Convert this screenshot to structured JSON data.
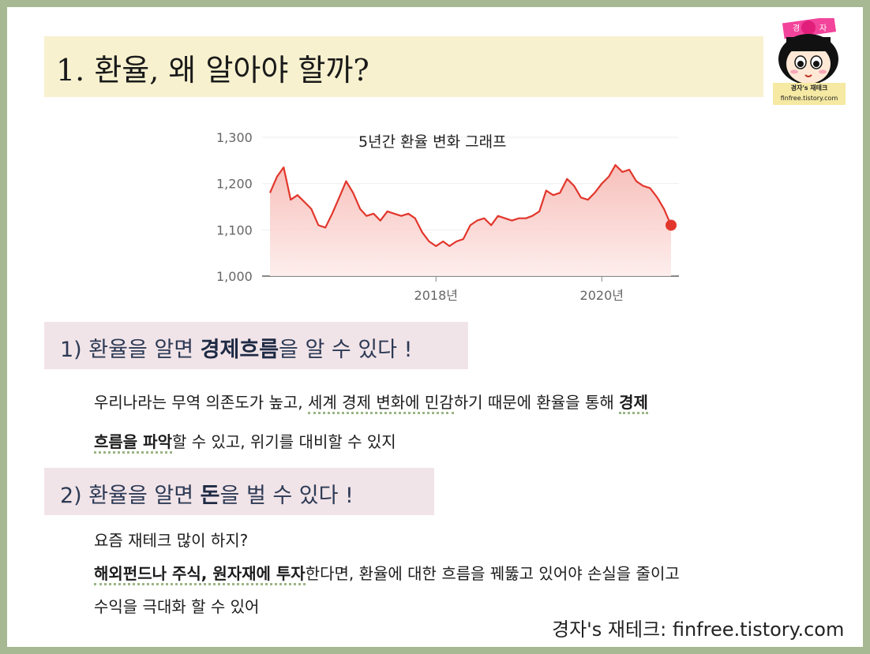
{
  "title": "1. 환율, 왜 알아야 할까?",
  "logo": {
    "badge_left": "경",
    "badge_right": "자",
    "caption_line1": "경자's 재테크",
    "caption_line2": "finfree.tistory.com"
  },
  "chart_data": {
    "type": "line",
    "title": "5년간 환율 변화 그래프",
    "xlabel": "",
    "ylabel": "",
    "ylim": [
      1000,
      1300
    ],
    "yticks": [
      "1,300",
      "1,200",
      "1,100",
      "1,000"
    ],
    "xticks": [
      "2018년",
      "2020년"
    ],
    "series": [
      {
        "x": [
          "2016-01",
          "2016-02",
          "2016-03",
          "2016-04",
          "2016-05",
          "2016-06",
          "2016-07",
          "2016-08",
          "2016-09",
          "2016-10",
          "2016-11",
          "2016-12",
          "2017-01",
          "2017-02",
          "2017-03",
          "2017-04",
          "2017-05",
          "2017-06",
          "2017-07",
          "2017-08",
          "2017-09",
          "2017-10",
          "2017-11",
          "2017-12",
          "2018-01",
          "2018-02",
          "2018-03",
          "2018-04",
          "2018-05",
          "2018-06",
          "2018-07",
          "2018-08",
          "2018-09",
          "2018-10",
          "2018-11",
          "2018-12",
          "2019-01",
          "2019-02",
          "2019-03",
          "2019-04",
          "2019-05",
          "2019-06",
          "2019-07",
          "2019-08",
          "2019-09",
          "2019-10",
          "2019-11",
          "2019-12",
          "2020-01",
          "2020-02",
          "2020-03",
          "2020-04",
          "2020-05",
          "2020-06",
          "2020-07",
          "2020-08",
          "2020-09",
          "2020-10",
          "2020-11"
        ],
        "values": [
          1180,
          1215,
          1235,
          1165,
          1175,
          1160,
          1145,
          1110,
          1105,
          1135,
          1170,
          1205,
          1180,
          1145,
          1130,
          1135,
          1120,
          1140,
          1135,
          1130,
          1135,
          1125,
          1095,
          1075,
          1065,
          1075,
          1065,
          1075,
          1080,
          1110,
          1120,
          1125,
          1110,
          1130,
          1125,
          1120,
          1125,
          1125,
          1130,
          1140,
          1185,
          1175,
          1180,
          1210,
          1195,
          1170,
          1165,
          1180,
          1200,
          1215,
          1240,
          1225,
          1230,
          1205,
          1195,
          1190,
          1170,
          1145,
          1110
        ]
      }
    ]
  },
  "section1": {
    "prefix": "1) 환율을 알면 ",
    "bold": "경제흐름",
    "suffix": "을 알 수 있다 !"
  },
  "para1": {
    "l1_a": "우리나라는 무역 의존도가 높고, ",
    "l1_b": "세계 경제 변화에 민감",
    "l1_c": "하기 때문에 환율을 통해 ",
    "l1_d": "경제",
    "l2_a": "흐름을 파악",
    "l2_b": "할 수 있고, 위기를 대비할 수 있지"
  },
  "section2": {
    "prefix": "2) 환율을 알면 ",
    "bold": "돈",
    "suffix": "을 벌 수 있다 !"
  },
  "para2": {
    "l1": "요즘 재테크 많이 하지?",
    "l2_a": "해외펀드나 주식, 원자재에 투자",
    "l2_b": "한다면, 환율에 대한 흐름을 꿰뚫고 있어야 손실을 줄이고",
    "l3": "수익을 극대화 할 수 있어"
  },
  "footer": "경자's 재테크: finfree.tistory.com",
  "colors": {
    "line": "#e2362c",
    "area_top": "#f6b9b3",
    "area_bottom": "#fdeceb",
    "frame": "#a7b993",
    "title_bg": "#f7f1cf",
    "section_bg": "#f1e4e8"
  }
}
